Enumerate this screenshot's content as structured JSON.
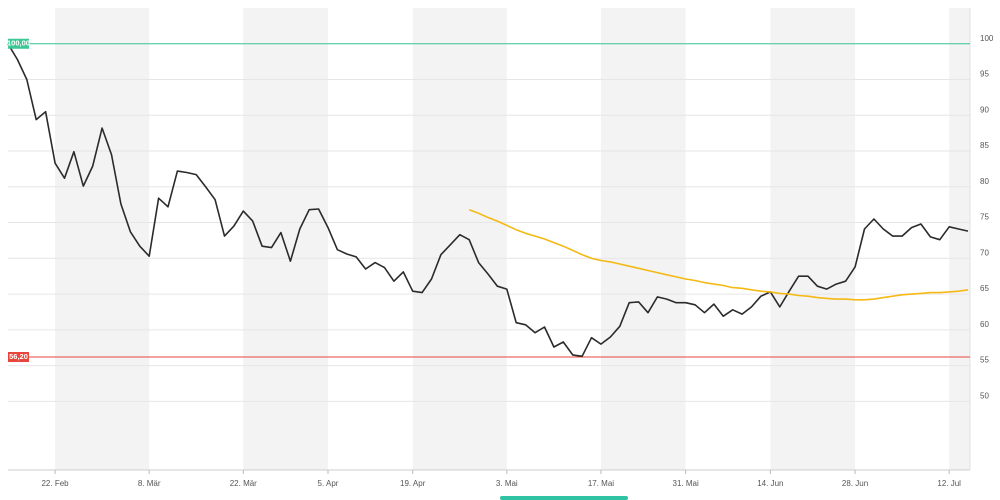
{
  "chart_data": {
    "type": "line",
    "categories": [
      null,
      null,
      null,
      null,
      null,
      "22. Feb",
      null,
      null,
      null,
      null,
      null,
      null,
      null,
      null,
      null,
      "8. Mär",
      null,
      null,
      null,
      null,
      null,
      null,
      null,
      null,
      null,
      "22. Mär",
      null,
      null,
      null,
      null,
      null,
      null,
      null,
      null,
      "5. Apr",
      null,
      null,
      null,
      null,
      null,
      null,
      null,
      null,
      "19. Apr",
      null,
      null,
      null,
      null,
      null,
      null,
      null,
      null,
      null,
      "3. Mai",
      null,
      null,
      null,
      null,
      null,
      null,
      null,
      null,
      null,
      "17. Mai",
      null,
      null,
      null,
      null,
      null,
      null,
      null,
      null,
      "31. Mai",
      null,
      null,
      null,
      null,
      null,
      null,
      null,
      null,
      "14. Jun",
      null,
      null,
      null,
      null,
      null,
      null,
      null,
      null,
      "28. Jun",
      null,
      null,
      null,
      null,
      null,
      null,
      null,
      null,
      null,
      "12. Jul",
      null,
      null
    ],
    "series": [
      {
        "color": "#2b2b2b",
        "values": [
          100,
          97.8,
          95,
          89.4,
          90.5,
          83.3,
          81.2,
          84.9,
          80.1,
          82.9,
          88.2,
          84.5,
          77.6,
          73.7,
          71.7,
          70.3,
          78.4,
          77.2,
          82.2,
          82.0,
          81.7,
          80.0,
          78.2,
          73.1,
          74.5,
          76.6,
          75.2,
          71.7,
          71.5,
          73.6,
          69.6,
          74.1,
          76.8,
          76.9,
          74.3,
          71.2,
          70.6,
          70.2,
          68.5,
          69.4,
          68.7,
          66.8,
          68.1,
          65.4,
          65.2,
          67.1,
          70.5,
          71.9,
          73.3,
          72.6,
          69.4,
          67.8,
          66.1,
          65.7,
          61.0,
          60.7,
          59.6,
          60.4,
          57.6,
          58.3,
          56.5,
          56.3,
          58.9,
          58.0,
          59.0,
          60.5,
          63.8,
          63.9,
          62.4,
          64.6,
          64.3,
          63.8,
          63.8,
          63.5,
          62.4,
          63.6,
          61.9,
          62.8,
          62.2,
          63.2,
          64.7,
          65.3,
          63.2,
          65.4,
          67.5,
          67.5,
          66.1,
          65.7,
          66.4,
          66.8,
          68.8,
          74.1,
          75.5,
          74.1,
          73.1,
          73.1,
          74.3,
          74.8,
          73.0,
          72.6,
          74.4,
          74.1,
          73.8
        ]
      },
      {
        "color": "#f5b914",
        "values": [
          null,
          null,
          null,
          null,
          null,
          null,
          null,
          null,
          null,
          null,
          null,
          null,
          null,
          null,
          null,
          null,
          null,
          null,
          null,
          null,
          null,
          null,
          null,
          null,
          null,
          null,
          null,
          null,
          null,
          null,
          null,
          null,
          null,
          null,
          null,
          null,
          null,
          null,
          null,
          null,
          null,
          null,
          null,
          null,
          null,
          null,
          null,
          null,
          null,
          76.8,
          76.3,
          75.7,
          75.2,
          74.6,
          74.0,
          73.5,
          73.1,
          72.7,
          72.2,
          71.7,
          71.1,
          70.5,
          70.0,
          69.7,
          69.5,
          69.2,
          68.9,
          68.6,
          68.3,
          68.0,
          67.7,
          67.4,
          67.1,
          66.9,
          66.6,
          66.4,
          66.2,
          65.9,
          65.8,
          65.6,
          65.4,
          65.3,
          65.1,
          65.0,
          64.8,
          64.7,
          64.5,
          64.4,
          64.3,
          64.3,
          64.2,
          64.2,
          64.3,
          64.5,
          64.7,
          64.9,
          65.0,
          65.1,
          65.2,
          65.2,
          65.3,
          65.4,
          65.6
        ]
      }
    ],
    "reference_lines": [
      {
        "value": 100,
        "label": "100,00",
        "color": "#3cc795"
      },
      {
        "value": 56.2,
        "label": "56,20",
        "color": "#e8453c"
      }
    ],
    "ylim": [
      40.4,
      105
    ],
    "yticks": [
      50,
      55,
      60,
      65,
      70,
      75,
      80,
      85,
      90,
      95,
      100
    ],
    "grid": true
  }
}
